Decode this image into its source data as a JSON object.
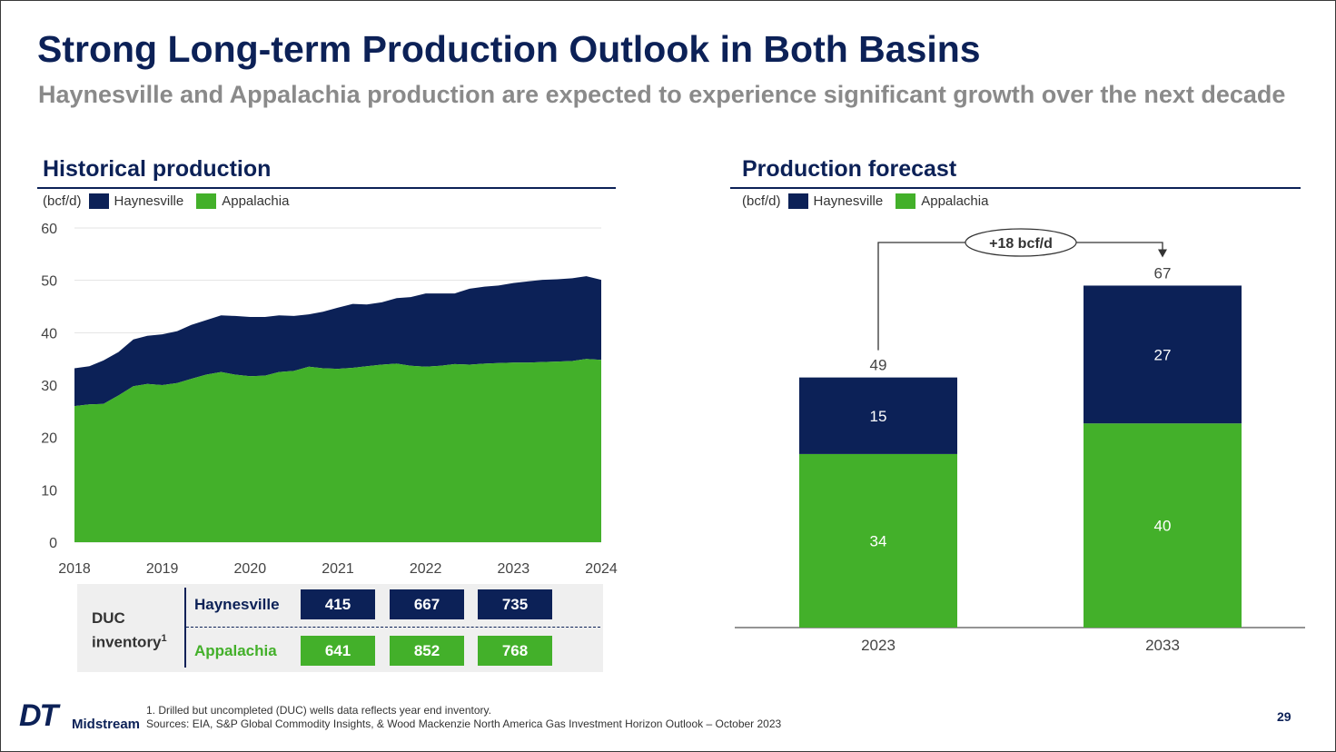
{
  "title": "Strong Long-term Production Outlook in Both Basins",
  "subtitle": "Haynesville and Appalachia production are expected to experience significant growth over the next decade",
  "colors": {
    "navy": "#0c2157",
    "green": "#43b02a"
  },
  "historical": {
    "section_title": "Historical production",
    "unit_label": "(bcf/d)",
    "legend": [
      "Haynesville",
      "Appalachia"
    ]
  },
  "forecast": {
    "section_title": "Production forecast",
    "unit_label": "(bcf/d)",
    "legend": [
      "Haynesville",
      "Appalachia"
    ],
    "delta_label": "+18 bcf/d"
  },
  "duc": {
    "label_line1": "DUC",
    "label_line2": "inventory",
    "label_sup": "1",
    "rows": [
      {
        "name": "Haynesville",
        "values": [
          "415",
          "667",
          "735"
        ]
      },
      {
        "name": "Appalachia",
        "values": [
          "641",
          "852",
          "768"
        ]
      }
    ]
  },
  "footnote": "1. Drilled but uncompleted (DUC) wells data reflects year end inventory.",
  "sources": "Sources: EIA, S&P Global Commodity Insights, & Wood Mackenzie North America Gas Investment Horizon Outlook – October 2023",
  "page_number": "29",
  "logo": {
    "mark": "DT",
    "text": "Midstream"
  },
  "chart_data": [
    {
      "type": "area",
      "stacked": true,
      "title": "Historical production",
      "ylabel": "(bcf/d)",
      "ylim": [
        0,
        60
      ],
      "yticks": [
        0,
        10,
        20,
        30,
        40,
        50,
        60
      ],
      "xlim": [
        2018,
        2024
      ],
      "xticks": [
        2018,
        2019,
        2020,
        2021,
        2022,
        2023,
        2024
      ],
      "x": [
        2018.0,
        2018.17,
        2018.33,
        2018.5,
        2018.67,
        2018.83,
        2019.0,
        2019.17,
        2019.33,
        2019.5,
        2019.67,
        2019.83,
        2020.0,
        2020.17,
        2020.33,
        2020.5,
        2020.67,
        2020.83,
        2021.0,
        2021.17,
        2021.33,
        2021.5,
        2021.67,
        2021.83,
        2022.0,
        2022.17,
        2022.33,
        2022.5,
        2022.67,
        2022.83,
        2023.0,
        2023.17,
        2023.33,
        2023.5,
        2023.67,
        2023.83,
        2024.0
      ],
      "series": [
        {
          "name": "Appalachia",
          "values": [
            26.0,
            26.3,
            26.4,
            28.0,
            29.8,
            30.2,
            30.0,
            30.4,
            31.2,
            32.0,
            32.5,
            32.0,
            31.7,
            31.8,
            32.5,
            32.7,
            33.5,
            33.2,
            33.1,
            33.3,
            33.6,
            33.9,
            34.1,
            33.7,
            33.5,
            33.7,
            34.0,
            33.9,
            34.1,
            34.2,
            34.3,
            34.3,
            34.4,
            34.5,
            34.6,
            35.0,
            34.8
          ]
        },
        {
          "name": "Haynesville",
          "values": [
            7.2,
            7.3,
            8.3,
            8.3,
            8.9,
            9.2,
            9.7,
            9.9,
            10.3,
            10.4,
            10.8,
            11.2,
            11.3,
            11.2,
            10.8,
            10.5,
            10.0,
            10.8,
            11.7,
            12.2,
            11.8,
            11.9,
            12.5,
            13.1,
            14.0,
            13.8,
            13.5,
            14.5,
            14.7,
            14.8,
            15.2,
            15.5,
            15.7,
            15.7,
            15.8,
            15.8,
            15.3
          ]
        }
      ]
    },
    {
      "type": "bar",
      "stacked": true,
      "title": "Production forecast",
      "ylabel": "(bcf/d)",
      "categories": [
        "2023",
        "2033"
      ],
      "series": [
        {
          "name": "Appalachia",
          "values": [
            34,
            40
          ]
        },
        {
          "name": "Haynesville",
          "values": [
            15,
            27
          ]
        }
      ],
      "totals": [
        49,
        67
      ],
      "annotation": "+18 bcf/d"
    }
  ]
}
